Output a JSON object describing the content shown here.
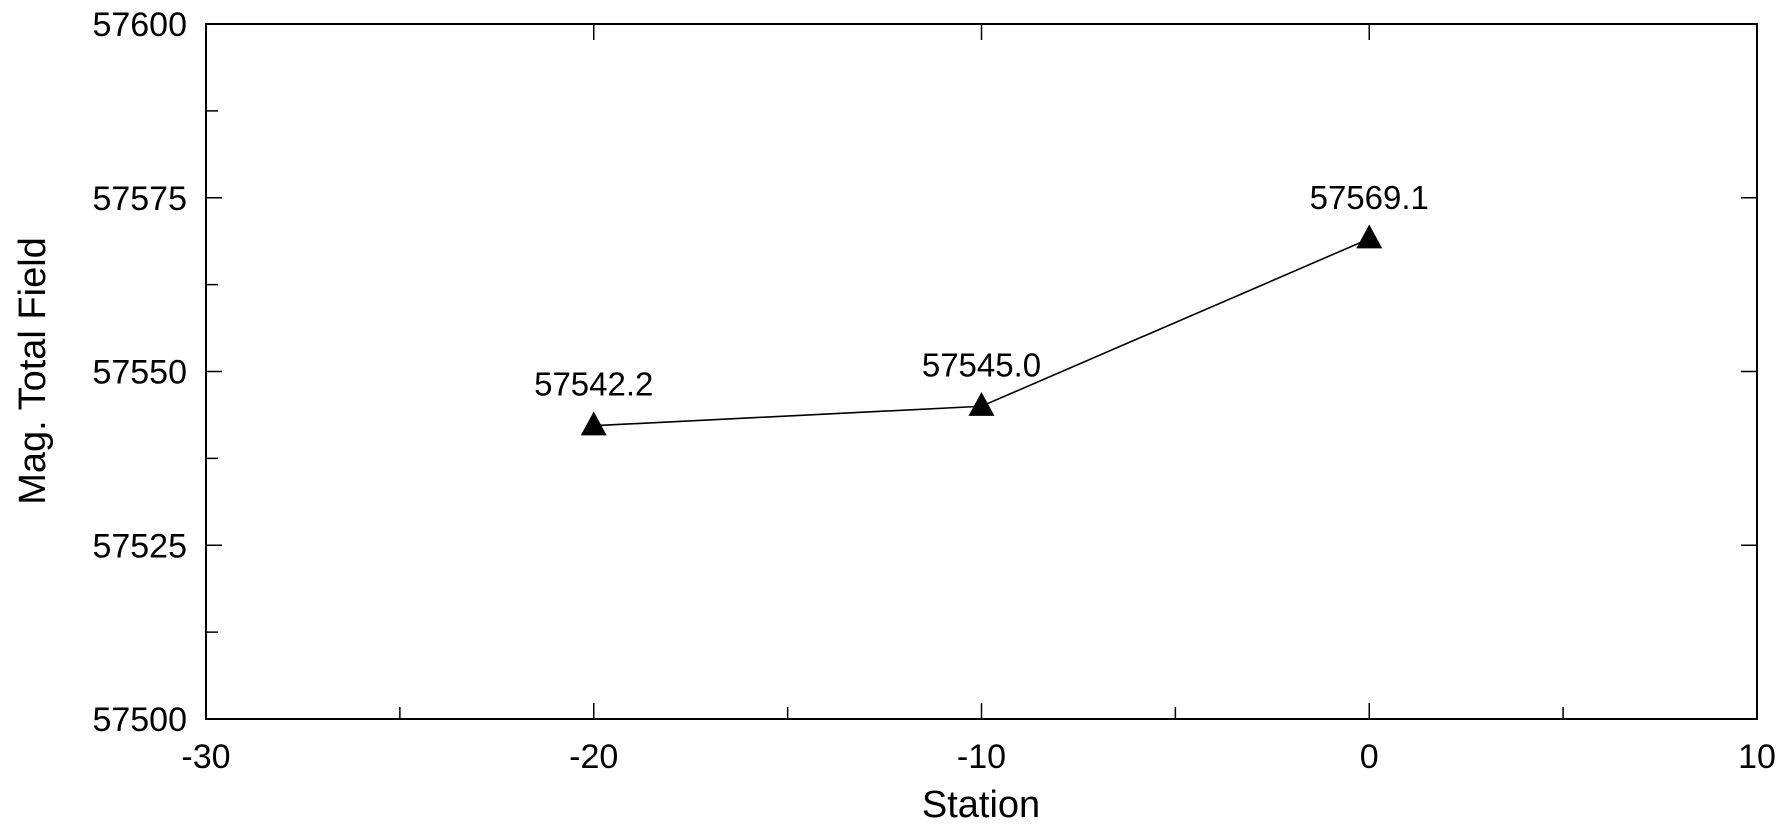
{
  "chart_data": {
    "type": "line",
    "title": "",
    "xlabel": "Station",
    "ylabel": "Mag. Total Field",
    "xlim": [
      -30,
      10
    ],
    "ylim": [
      57500,
      57600
    ],
    "x_ticks": [
      -30,
      -20,
      -10,
      0,
      10
    ],
    "x_tick_labels": [
      "-30",
      "-20",
      "-10",
      "0",
      "10"
    ],
    "y_ticks": [
      57500,
      57525,
      57550,
      57575,
      57600
    ],
    "y_tick_labels": [
      "57500",
      "57525",
      "57550",
      "57575",
      "57600"
    ],
    "x_minor_ticks": [
      -25,
      -15,
      -5,
      5
    ],
    "y_minor_ticks": [
      57512.5,
      57537.5,
      57562.5,
      57587.5
    ],
    "grid": false,
    "marker": "triangle",
    "series": [
      {
        "x": [
          -20,
          -10,
          0
        ],
        "y": [
          57542.2,
          57545.0,
          57569.1
        ],
        "data_labels": [
          "57542.2",
          "57545.0",
          "57569.1"
        ]
      }
    ]
  }
}
